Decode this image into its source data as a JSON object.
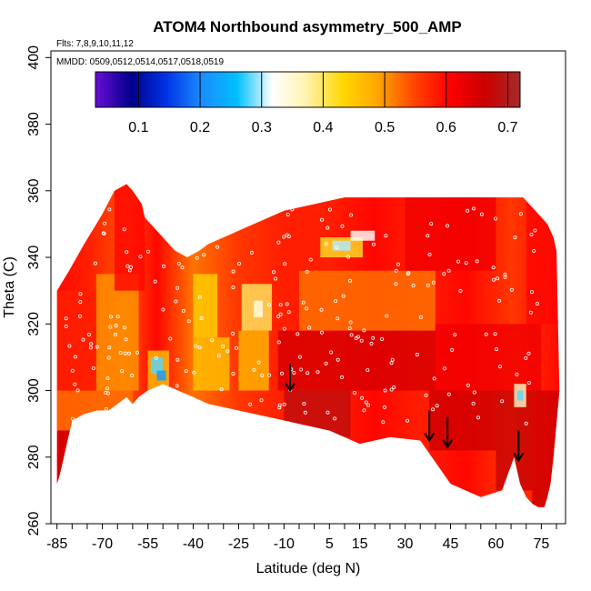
{
  "chart_data": {
    "type": "heatmap",
    "title": "ATOM4 Northbound asymmetry_500_AMP",
    "notes": [
      "Flts: 7,8,9,10,11,12",
      "MMDD: 0509,0512,0514,0517,0518,0519"
    ],
    "xlabel": "Latitude (deg N)",
    "ylabel": "Theta (C)",
    "xlim": [
      -87,
      83
    ],
    "ylim": [
      260,
      402
    ],
    "x_ticks": [
      -85,
      -70,
      -55,
      -40,
      -25,
      -10,
      5,
      15,
      30,
      45,
      60,
      75
    ],
    "y_ticks": [
      260,
      280,
      300,
      320,
      340,
      360,
      380,
      400
    ],
    "colorbar": {
      "range": [
        0.03,
        0.72
      ],
      "ticks": [
        0.1,
        0.2,
        0.3,
        0.4,
        0.5,
        0.6,
        0.7
      ],
      "colors": [
        "#6a0dd6",
        "#00008b",
        "#0033e6",
        "#1a8cff",
        "#00bfff",
        "#ffffff",
        "#fff2a8",
        "#ffd700",
        "#ffa500",
        "#ff4500",
        "#ff0000",
        "#cc0000",
        "#a52a2a"
      ]
    },
    "arrows_latitude": [
      -8,
      38,
      44,
      67.5
    ],
    "field_description": "mostly values 0.45-0.68; low values (~0.25-0.35) near 55S/305K, 20S/325K, 10N/343K, 68N/298K",
    "domain_outline": {
      "lat": [
        -85,
        -81,
        -76,
        -70,
        -66,
        -62,
        -60,
        -57,
        -56,
        -52,
        -50,
        -48,
        -46,
        -44,
        -42,
        -40,
        -38,
        -35,
        -30,
        -25,
        -20,
        -15,
        -10,
        -5,
        0,
        5,
        10,
        15,
        20,
        25,
        30,
        35,
        38,
        40,
        44,
        47,
        50,
        53,
        56,
        58,
        60,
        61,
        62,
        63,
        64,
        65,
        66,
        67,
        68,
        69,
        70,
        71,
        72,
        73,
        75,
        77,
        79,
        80,
        81,
        80,
        79,
        78,
        77,
        76,
        74,
        72,
        70,
        68,
        66,
        62,
        55,
        45,
        35,
        25,
        15,
        5,
        -5,
        -15,
        -25,
        -35,
        -40,
        -45,
        -50,
        -55,
        -58,
        -60,
        -62,
        -65,
        -68,
        -72,
        -76,
        -80,
        -84,
        -85
      ],
      "theta": [
        330,
        336,
        344,
        353,
        360,
        362,
        360,
        356,
        352,
        348,
        346,
        344,
        342,
        341,
        340,
        341,
        342,
        344,
        346,
        348,
        350,
        352,
        354,
        355,
        356,
        357,
        358,
        358,
        358,
        358,
        358,
        358,
        358,
        358,
        358,
        358,
        358,
        358,
        358,
        358,
        358,
        358,
        358,
        358,
        358,
        358,
        358,
        358,
        358,
        358,
        357,
        356,
        355,
        354,
        352,
        350,
        346,
        342,
        300,
        290,
        280,
        272,
        268,
        265,
        265,
        266,
        268,
        272,
        280,
        270,
        268,
        272,
        285,
        286,
        284,
        288,
        290,
        292,
        294,
        296,
        298,
        300,
        302,
        300,
        298,
        296,
        298,
        296,
        294,
        294,
        293,
        291,
        275,
        272
      ]
    }
  }
}
